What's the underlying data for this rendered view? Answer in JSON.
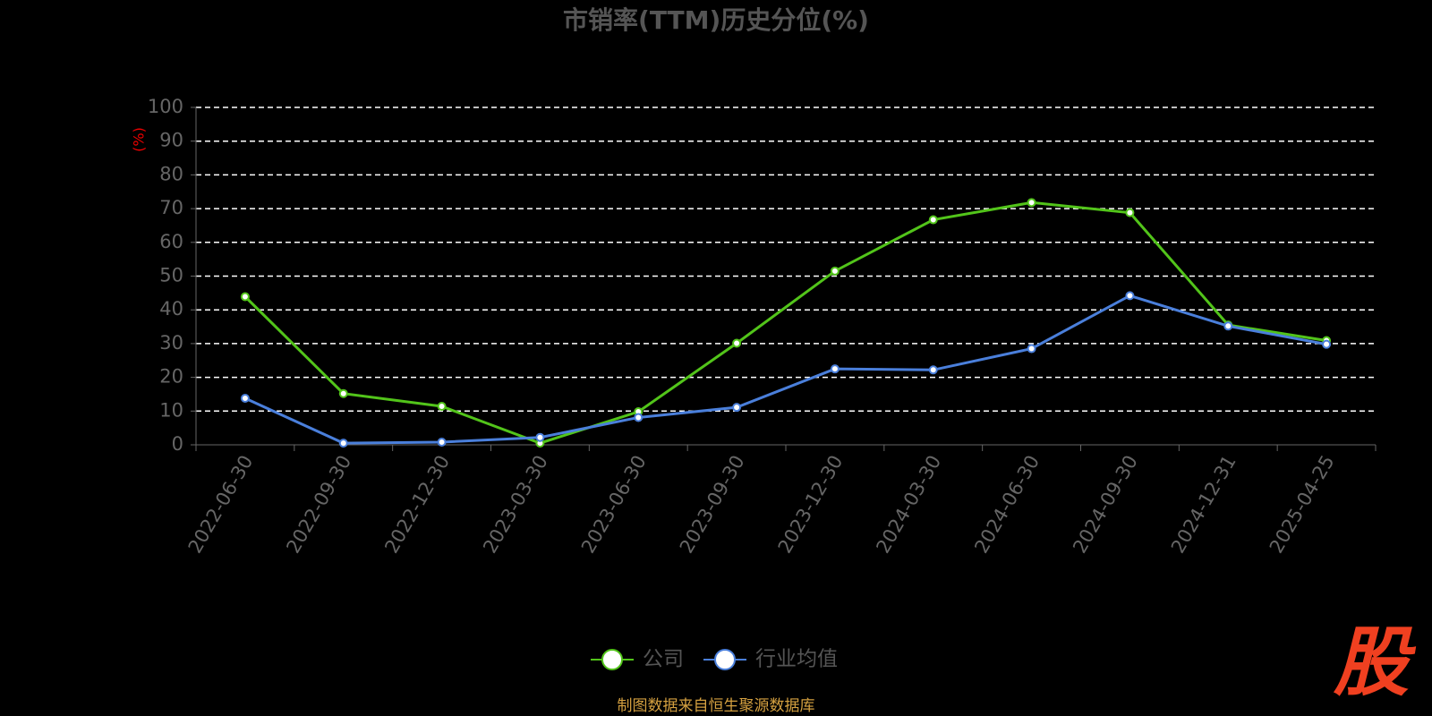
{
  "chart_data": {
    "type": "line",
    "title": "市销率(TTM)历史分位(%)",
    "y_label": "(%)",
    "categories": [
      "2022-06-30",
      "2022-09-30",
      "2022-12-30",
      "2023-03-30",
      "2023-06-30",
      "2023-09-30",
      "2023-12-30",
      "2024-03-30",
      "2024-06-30",
      "2024-09-30",
      "2024-12-31",
      "2025-04-25"
    ],
    "series": [
      {
        "name": "公司",
        "color": "#52c41a",
        "values": [
          43.9,
          15.2,
          11.4,
          0.5,
          9.8,
          30.1,
          51.5,
          66.7,
          71.8,
          68.8,
          35.5,
          30.9
        ]
      },
      {
        "name": "行业均值",
        "color": "#4a7fdb",
        "values": [
          13.8,
          0.5,
          0.8,
          2.2,
          8.1,
          11.1,
          22.5,
          22.2,
          28.5,
          44.2,
          35.2,
          29.8
        ]
      }
    ],
    "ylim": [
      0,
      100
    ],
    "yticks": [
      0,
      10,
      20,
      30,
      40,
      50,
      60,
      70,
      80,
      90,
      100
    ],
    "grid": true,
    "source": "制图数据来自恒生聚源数据库",
    "logo": "股"
  }
}
